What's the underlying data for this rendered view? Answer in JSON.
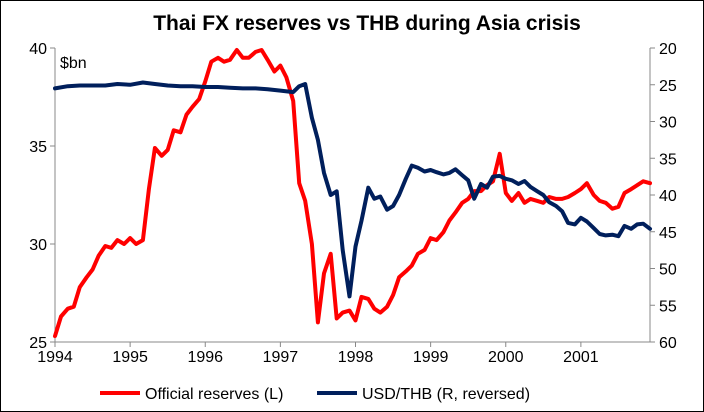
{
  "chart_data": {
    "type": "line",
    "title": "Thai FX reserves vs THB during Asia crisis",
    "left_axis": {
      "unit": "$bn",
      "ylim": [
        25,
        40
      ],
      "ticks": [
        "25",
        "30",
        "35",
        "40"
      ]
    },
    "right_axis": {
      "reversed": true,
      "ylim": [
        20,
        60
      ],
      "ticks": [
        "20",
        "25",
        "30",
        "35",
        "40",
        "45",
        "50",
        "55",
        "60"
      ]
    },
    "x_axis": {
      "xlim": [
        1994,
        2001.92
      ],
      "ticks": [
        "1994",
        "1995",
        "1996",
        "1997",
        "1998",
        "1999",
        "2000",
        "2001"
      ]
    },
    "grid": false,
    "legend_position": "bottom",
    "series": [
      {
        "name": "Official reserves (L)",
        "axis": "left",
        "color": "#ff0000",
        "x": [
          1994.0,
          1994.08,
          1994.17,
          1994.25,
          1994.33,
          1994.42,
          1994.5,
          1994.58,
          1994.67,
          1994.75,
          1994.83,
          1994.92,
          1995.0,
          1995.08,
          1995.17,
          1995.25,
          1995.33,
          1995.42,
          1995.5,
          1995.58,
          1995.67,
          1995.75,
          1995.83,
          1995.92,
          1996.0,
          1996.08,
          1996.17,
          1996.25,
          1996.33,
          1996.42,
          1996.5,
          1996.58,
          1996.67,
          1996.75,
          1996.83,
          1996.92,
          1997.0,
          1997.08,
          1997.17,
          1997.25,
          1997.33,
          1997.42,
          1997.5,
          1997.58,
          1997.67,
          1997.75,
          1997.83,
          1997.92,
          1998.0,
          1998.08,
          1998.17,
          1998.25,
          1998.33,
          1998.42,
          1998.5,
          1998.58,
          1998.67,
          1998.75,
          1998.83,
          1998.92,
          1999.0,
          1999.08,
          1999.17,
          1999.25,
          1999.33,
          1999.42,
          1999.5,
          1999.58,
          1999.67,
          1999.75,
          1999.83,
          1999.92,
          2000.0,
          2000.08,
          2000.17,
          2000.25,
          2000.33,
          2000.42,
          2000.5,
          2000.58,
          2000.67,
          2000.75,
          2000.83,
          2000.92,
          2001.0,
          2001.08,
          2001.17,
          2001.25,
          2001.33,
          2001.42,
          2001.5,
          2001.58,
          2001.67,
          2001.75,
          2001.83,
          2001.92
        ],
        "values": [
          25.3,
          26.3,
          26.7,
          26.8,
          27.8,
          28.3,
          28.7,
          29.4,
          29.9,
          29.8,
          30.2,
          30.0,
          30.3,
          30.0,
          30.2,
          32.8,
          34.9,
          34.5,
          34.8,
          35.8,
          35.7,
          36.6,
          37.0,
          37.4,
          38.3,
          39.3,
          39.5,
          39.3,
          39.4,
          39.9,
          39.5,
          39.5,
          39.8,
          39.9,
          39.4,
          38.8,
          39.1,
          38.5,
          37.3,
          33.1,
          32.2,
          30.0,
          26.0,
          28.5,
          29.5,
          26.2,
          26.5,
          26.6,
          26.1,
          27.3,
          27.2,
          26.7,
          26.5,
          26.8,
          27.4,
          28.3,
          28.6,
          28.9,
          29.5,
          29.7,
          30.3,
          30.2,
          30.6,
          31.2,
          31.6,
          32.1,
          32.3,
          32.7,
          32.7,
          33.0,
          33.2,
          34.6,
          32.6,
          32.2,
          32.6,
          32.1,
          32.3,
          32.2,
          32.1,
          32.4,
          32.3,
          32.3,
          32.4,
          32.6,
          32.8,
          33.1,
          32.5,
          32.2,
          32.1,
          31.8,
          31.9,
          32.6,
          32.8,
          33.0,
          33.2,
          33.1
        ]
      },
      {
        "name": "USD/THB (R, reversed)",
        "axis": "right",
        "color": "#001f5c",
        "x": [
          1994.0,
          1994.17,
          1994.33,
          1994.5,
          1994.67,
          1994.83,
          1995.0,
          1995.17,
          1995.33,
          1995.5,
          1995.67,
          1995.83,
          1996.0,
          1996.17,
          1996.33,
          1996.5,
          1996.67,
          1996.83,
          1997.0,
          1997.17,
          1997.25,
          1997.33,
          1997.42,
          1997.5,
          1997.58,
          1997.67,
          1997.75,
          1997.83,
          1997.92,
          1998.0,
          1998.08,
          1998.17,
          1998.25,
          1998.33,
          1998.42,
          1998.5,
          1998.58,
          1998.67,
          1998.75,
          1998.83,
          1998.92,
          1999.0,
          1999.08,
          1999.17,
          1999.25,
          1999.33,
          1999.42,
          1999.5,
          1999.58,
          1999.67,
          1999.75,
          1999.83,
          1999.92,
          2000.0,
          2000.08,
          2000.17,
          2000.25,
          2000.33,
          2000.42,
          2000.5,
          2000.58,
          2000.67,
          2000.75,
          2000.83,
          2000.92,
          2001.0,
          2001.08,
          2001.17,
          2001.25,
          2001.33,
          2001.42,
          2001.5,
          2001.58,
          2001.67,
          2001.75,
          2001.83,
          2001.92
        ],
        "values": [
          25.5,
          25.2,
          25.1,
          25.1,
          25.1,
          24.9,
          25.0,
          24.7,
          24.9,
          25.1,
          25.2,
          25.2,
          25.3,
          25.3,
          25.4,
          25.5,
          25.5,
          25.6,
          25.8,
          26.0,
          25.2,
          24.9,
          29.5,
          32.5,
          37.0,
          40.0,
          39.5,
          47.5,
          53.8,
          47.0,
          43.5,
          39.0,
          40.5,
          40.2,
          42.0,
          41.5,
          40.0,
          37.8,
          36.0,
          36.3,
          36.8,
          36.6,
          36.9,
          37.2,
          37.0,
          36.5,
          37.3,
          38.0,
          40.5,
          38.5,
          39.0,
          37.5,
          37.4,
          37.8,
          38.0,
          38.5,
          38.1,
          38.9,
          39.5,
          40.0,
          41.0,
          41.5,
          42.2,
          43.8,
          44.0,
          43.1,
          43.6,
          44.5,
          45.3,
          45.5,
          45.4,
          45.6,
          44.2,
          44.6,
          44.0,
          43.9,
          44.6
        ]
      }
    ]
  }
}
